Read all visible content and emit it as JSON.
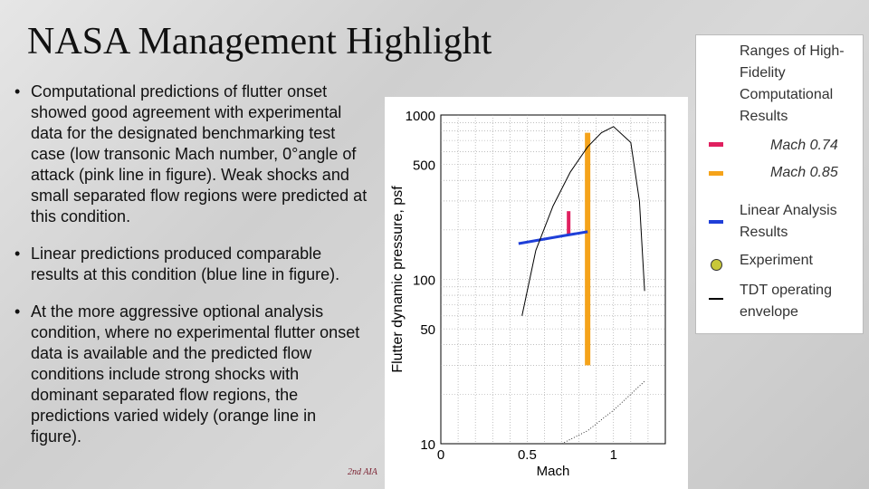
{
  "slide": {
    "title": "NASA Management Highlight",
    "bullets": [
      "Computational predictions of flutter onset showed good agreement with experimental data for the designated benchmarking test case (low transonic Mach number, 0°angle of attack (pink line in figure). Weak shocks and small separated flow regions were predicted at this condition.",
      " Linear predictions produced comparable results at this condition (blue line in figure).",
      "At the more aggressive optional analysis condition, where no experimental flutter onset data is available and the predicted flow conditions include strong shocks with dominant separated flow regions, the predictions varied widely (orange line in figure)."
    ],
    "footer_fragment": "2nd AIA",
    "bullet_glyph": "•"
  },
  "legend": {
    "heading": "Ranges of High-Fidelity Computational Results",
    "items": [
      {
        "label": "Mach 0.74",
        "color": "#e0205f",
        "icon": "short-bar"
      },
      {
        "label": "Mach 0.85",
        "color": "#f5a31a",
        "icon": "short-bar"
      },
      {
        "label": "Linear Analysis Results",
        "color": "#1f3fd8",
        "icon": "short-bar"
      },
      {
        "label": "Experiment",
        "color": "#c8c83a",
        "icon": "circle"
      },
      {
        "label": "TDT operating envelope",
        "color": "#000000",
        "icon": "short-bar"
      }
    ]
  },
  "chart_data": {
    "type": "line",
    "xlabel": "Mach",
    "ylabel": "Flutter dynamic pressure, psf",
    "xlim": [
      0,
      1.3
    ],
    "ylim": [
      10,
      1000
    ],
    "y_scale": "log",
    "x_ticks": [
      0,
      0.5,
      1
    ],
    "x_tick_labels": [
      "0",
      "0.5",
      "1"
    ],
    "y_ticks": [
      10,
      50,
      100,
      500,
      1000
    ],
    "y_tick_labels": [
      "10",
      "50",
      "100",
      "500",
      "1000"
    ],
    "grid": true,
    "series": [
      {
        "name": "Mach 0.74",
        "color": "#e0205f",
        "kind": "range",
        "x": 0.74,
        "y_range": [
          185,
          260
        ]
      },
      {
        "name": "Mach 0.85",
        "color": "#f5a31a",
        "kind": "range",
        "x": 0.85,
        "y_range": [
          30,
          780
        ]
      },
      {
        "name": "Linear Analysis Results",
        "color": "#1f3fd8",
        "kind": "line",
        "x": [
          0.45,
          0.72,
          0.85
        ],
        "y": [
          165,
          185,
          195
        ]
      },
      {
        "name": "TDT operating envelope",
        "color": "#000000",
        "kind": "line",
        "x": [
          0.47,
          0.55,
          0.65,
          0.75,
          0.85,
          0.93,
          1.0,
          1.1,
          1.15,
          1.18
        ],
        "y": [
          60,
          150,
          280,
          450,
          640,
          780,
          850,
          680,
          300,
          85
        ]
      },
      {
        "name": "TDT operating envelope (lower)",
        "color": "#000000",
        "kind": "dotted",
        "x": [
          0.7,
          0.85,
          1.0,
          1.1,
          1.18
        ],
        "y": [
          10,
          12,
          16,
          20,
          24
        ]
      }
    ]
  }
}
